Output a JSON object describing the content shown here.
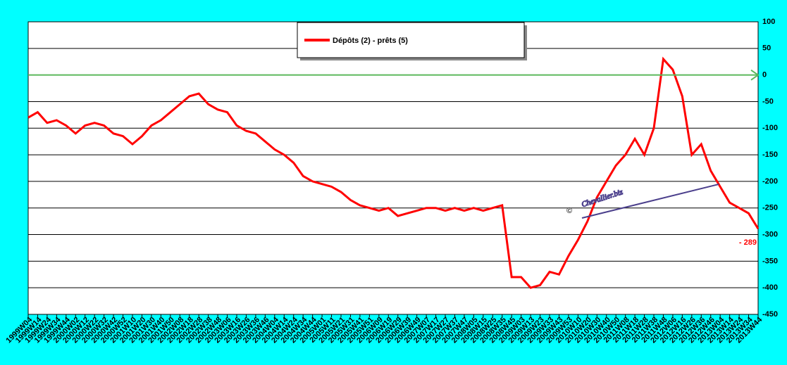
{
  "chart_data": {
    "type": "line",
    "series": [
      {
        "name": "Dépôts (2) - prêts (5)",
        "color": "#ff0000",
        "values": [
          -80,
          -70,
          -90,
          -85,
          -95,
          -110,
          -95,
          -90,
          -95,
          -110,
          -115,
          -130,
          -115,
          -95,
          -85,
          -70,
          -55,
          -40,
          -35,
          -55,
          -65,
          -70,
          -95,
          -105,
          -110,
          -125,
          -140,
          -150,
          -165,
          -190,
          -200,
          -205,
          -210,
          -220,
          -235,
          -245,
          -250,
          -255,
          -250,
          -265,
          -260,
          -255,
          -250,
          -250,
          -255,
          -250,
          -255,
          -250,
          -255,
          -250,
          -245,
          -380,
          -380,
          -400,
          -395,
          -370,
          -375,
          -340,
          -310,
          -275,
          -230,
          -200,
          -170,
          -150,
          -120,
          -150,
          -100,
          30,
          10,
          -40,
          -150,
          -130,
          -180,
          -210,
          -240,
          -250,
          -260,
          -289
        ]
      }
    ],
    "categories": [
      "1999W04",
      "1999W14",
      "1999W24",
      "1999W34",
      "1999W44",
      "2000W02",
      "2000W12",
      "2000W22",
      "2000W32",
      "2000W42",
      "2000W52",
      "2001W10",
      "2001W20",
      "2001W30",
      "2001W40",
      "2001W50",
      "2002W08",
      "2002W18",
      "2002W28",
      "2002W38",
      "2002W48",
      "2003W06",
      "2003W16",
      "2003W26",
      "2003W36",
      "2003W46",
      "2004W04",
      "2004W14",
      "2004W24",
      "2004W34",
      "2004W44",
      "2005W01",
      "2005W11",
      "2005W21",
      "2005W31",
      "2005W41",
      "2005W51",
      "2006W09",
      "2006W19",
      "2006W29",
      "2006W39",
      "2006W49",
      "2007W07",
      "2007W17",
      "2007W27",
      "2007W37",
      "2007W47",
      "2008W05",
      "2008W15",
      "2008W25",
      "2008W35",
      "2008W45",
      "2009W03",
      "2009W13",
      "2009W23",
      "2009W33",
      "2009W43",
      "2009W53",
      "2010W10",
      "2010W20",
      "2010W30",
      "2010W40",
      "2010W50",
      "2011W08",
      "2011W18",
      "2011W28",
      "2011W38",
      "2011W48",
      "2012W06",
      "2012W16",
      "2012W26",
      "2012W36",
      "2012W46",
      "2013W04",
      "2013W14",
      "2013W24",
      "2013W34",
      "2013W44"
    ],
    "ylim": [
      -450,
      100
    ],
    "yticks": [
      100,
      50,
      0,
      -50,
      -100,
      -150,
      -200,
      -250,
      -300,
      -350,
      -400,
      -450
    ],
    "grid": true,
    "reference_line": {
      "value": 0,
      "color": "#5cb85c"
    },
    "last_value_label": "- 289",
    "watermark": "Chevallier.biz",
    "watermark_symbol": "©",
    "legend": "top"
  }
}
